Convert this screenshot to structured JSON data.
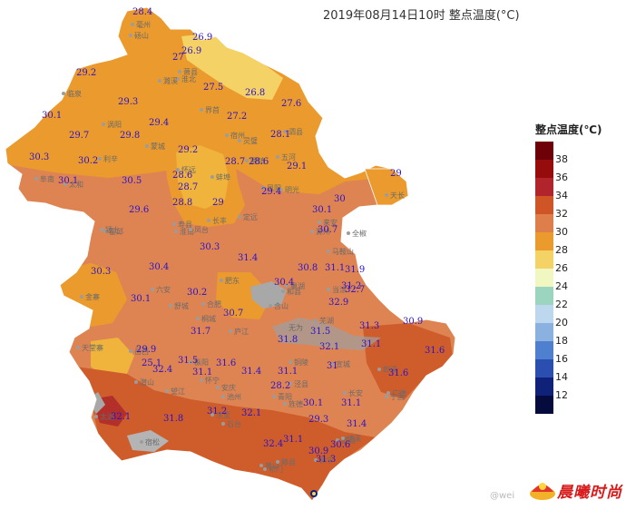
{
  "title": "2019年08月14日10时  整点温度(°C)",
  "legend": {
    "title": "整点温度(℃)",
    "items": [
      {
        "label": "38",
        "color": "#6e0007"
      },
      {
        "label": "36",
        "color": "#960b0b"
      },
      {
        "label": "34",
        "color": "#b2242b"
      },
      {
        "label": "32",
        "color": "#cf5426"
      },
      {
        "label": "30",
        "color": "#de7e4b"
      },
      {
        "label": "28",
        "color": "#eb9b2d"
      },
      {
        "label": "26",
        "color": "#f4d266"
      },
      {
        "label": "24",
        "color": "#f1f7c0"
      },
      {
        "label": "22",
        "color": "#9bd5c0"
      },
      {
        "label": "20",
        "color": "#bdd8ee"
      },
      {
        "label": "18",
        "color": "#8ab1df"
      },
      {
        "label": "16",
        "color": "#4e80cf"
      },
      {
        "label": "14",
        "color": "#2a4fb0"
      },
      {
        "label": "12",
        "color": "#10217a"
      },
      {
        "label": "",
        "color": "#050b3d"
      }
    ]
  },
  "temperatures": [
    "28.4",
    "26.9",
    "26.9",
    "27",
    "29.2",
    "27.5",
    "26.8",
    "27.6",
    "29.3",
    "27.2",
    "28.1",
    "30.1",
    "29.4",
    "29.7",
    "29.8",
    "30.3",
    "30.2",
    "29.2",
    "28.7",
    "28.6",
    "29.1",
    "30.1",
    "30.5",
    "28.6",
    "29",
    "28.7",
    "29.4",
    "28.8",
    "29.6",
    "29",
    "30",
    "30.1",
    "30.7",
    "30.3",
    "31.4",
    "30.3",
    "30.4",
    "30.8",
    "31.1",
    "31.9",
    "30.4",
    "31.2",
    "32.7",
    "30.1",
    "30.2",
    "30.7",
    "32.9",
    "31.7",
    "29.9",
    "31.8",
    "31.5",
    "31.3",
    "30.9",
    "32.1",
    "31.1",
    "31.6",
    "25.1",
    "32.4",
    "31.5",
    "31.6",
    "31.4",
    "31.1",
    "31.1",
    "31",
    "31.6",
    "32.1",
    "31.8",
    "31.2",
    "32.1",
    "28.2",
    "30.1",
    "31.1",
    "29.3",
    "31.4",
    "32.4",
    "31.1",
    "30.9",
    "30.6",
    "31.3"
  ],
  "cities": [
    "砀山",
    "萧县",
    "淮北",
    "濉溪",
    "临泉",
    "界首",
    "涡阳",
    "蒙城",
    "利辛",
    "阜南",
    "太和",
    "怀远",
    "蚌埠",
    "凤阳",
    "五河",
    "泗县",
    "灵璧",
    "宿州",
    "固镇",
    "明光",
    "天长",
    "来安",
    "滁州",
    "全椒",
    "定远",
    "长丰",
    "寿县",
    "霍邱",
    "淮南",
    "凤台",
    "颍上",
    "金寨",
    "六安",
    "舒城",
    "合肥",
    "肥东",
    "含山",
    "和县",
    "马鞍山",
    "当涂",
    "芜湖",
    "宣城",
    "广德",
    "郎溪",
    "泾县",
    "宁国",
    "旌德",
    "黄山",
    "歙县",
    "休宁",
    "祁门",
    "黟县",
    "绩溪",
    "石台",
    "东至",
    "池州",
    "青阳",
    "铜陵",
    "无为",
    "庐江",
    "桐城",
    "枞阳",
    "安庆",
    "望江",
    "宿松",
    "太湖",
    "潜山",
    "岳西",
    "怀宁",
    "天堂寨",
    "巢湖",
    "长安",
    "毫州"
  ],
  "logo_text": "晨曦时尚",
  "watermark": "@wei"
}
